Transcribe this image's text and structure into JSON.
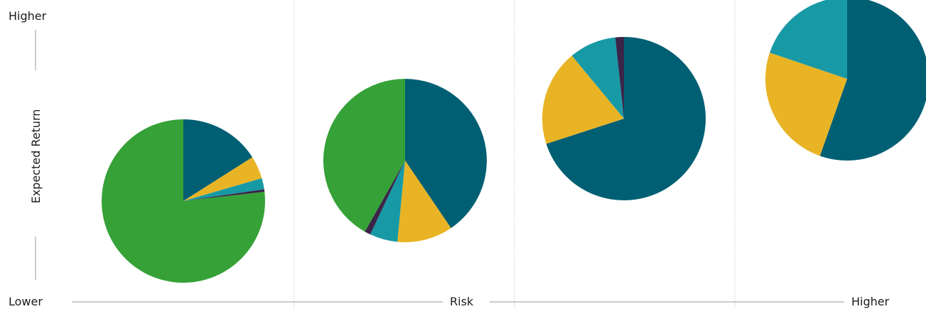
{
  "chart_data": {
    "type": "pie",
    "title": "",
    "xlabel": "Risk",
    "ylabel": "Expected Return",
    "x_axis_low": "Lower",
    "x_axis_high": "Higher",
    "y_axis_high": "Higher",
    "legend": "none",
    "colors": {
      "navy_teal": "#005F73",
      "gold": "#E8B425",
      "teal": "#1899A6",
      "aubergine": "#3A2548",
      "green": "#35A137"
    },
    "portfolios": [
      {
        "slices": [
          {
            "color": "#005F73",
            "value": 16.0
          },
          {
            "color": "#E8B425",
            "value": 4.5
          },
          {
            "color": "#1899A6",
            "value": 2.2
          },
          {
            "color": "#3A2548",
            "value": 0.5
          },
          {
            "color": "#35A137",
            "value": 76.8
          }
        ]
      },
      {
        "slices": [
          {
            "color": "#005F73",
            "value": 40.5
          },
          {
            "color": "#E8B425",
            "value": 11.0
          },
          {
            "color": "#1899A6",
            "value": 5.5
          },
          {
            "color": "#3A2548",
            "value": 1.2
          },
          {
            "color": "#35A137",
            "value": 41.8
          }
        ]
      },
      {
        "slices": [
          {
            "color": "#005F73",
            "value": 70.0
          },
          {
            "color": "#E8B425",
            "value": 19.0
          },
          {
            "color": "#1899A6",
            "value": 9.3
          },
          {
            "color": "#3A2548",
            "value": 1.7
          }
        ]
      },
      {
        "slices": [
          {
            "color": "#005F73",
            "value": 55.4
          },
          {
            "color": "#E8B425",
            "value": 24.8
          },
          {
            "color": "#1899A6",
            "value": 19.8
          }
        ]
      }
    ]
  }
}
